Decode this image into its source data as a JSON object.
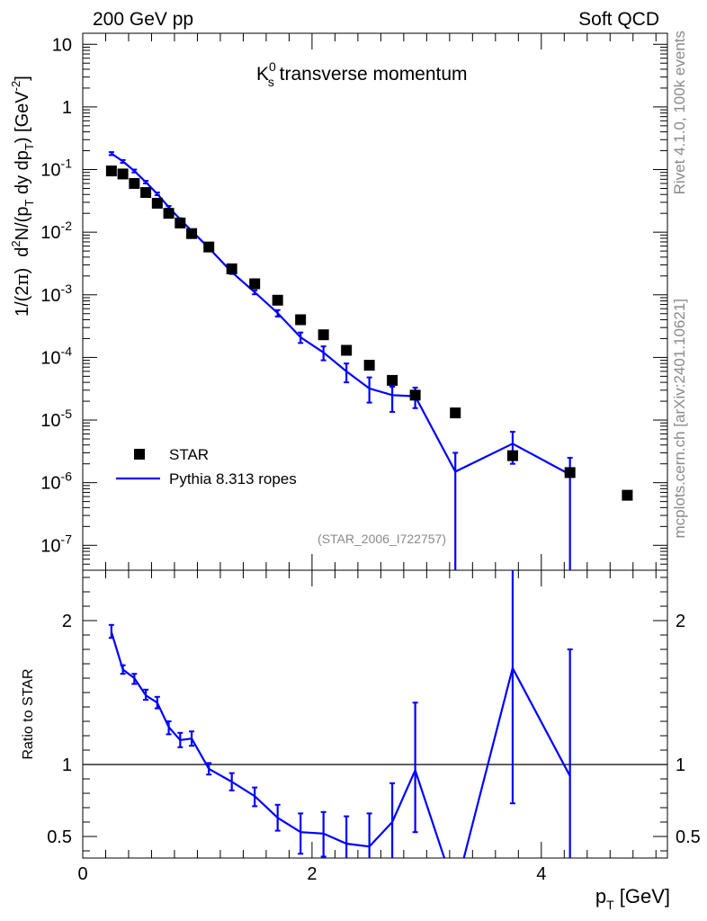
{
  "header": {
    "left": "200 GeV pp",
    "right": "Soft QCD"
  },
  "side": {
    "rivet": "Rivet 4.1.0,  100k events",
    "mcplots": "mcplots.cern.ch [arXiv:2401.10621]"
  },
  "chart_data": [
    {
      "type": "scatter",
      "title": "K_s^0 transverse momentum",
      "title_main": "K",
      "title_sup": "0",
      "title_sub": "s",
      "title_rest": " transverse momentum",
      "xlabel": "p_T [GeV]",
      "xlabel_main": "p",
      "xlabel_sub": "T",
      "xlabel_rest": " [GeV]",
      "ylabel": "1/(2π)  d²N/(p_T dy dp_T) [GeV⁻²]",
      "ylabel_parts": [
        "1/(2",
        "π",
        ")",
        "d",
        "2",
        "N/(p",
        "T",
        " dy dp",
        "T",
        ") [GeV",
        "-2",
        "]"
      ],
      "xlim": [
        0,
        5.1
      ],
      "ylim": [
        4e-08,
        15
      ],
      "yscale": "log",
      "annotation": "(STAR_2006_I722757)",
      "legend_position": "bottom-left",
      "yticks": [
        {
          "value": 10,
          "label": "10"
        },
        {
          "value": 1,
          "label": "1"
        },
        {
          "value": 0.1,
          "mant": "10",
          "exp": "-1"
        },
        {
          "value": 0.01,
          "mant": "10",
          "exp": "-2"
        },
        {
          "value": 0.001,
          "mant": "10",
          "exp": "-3"
        },
        {
          "value": 0.0001,
          "mant": "10",
          "exp": "-4"
        },
        {
          "value": 1e-05,
          "mant": "10",
          "exp": "-5"
        },
        {
          "value": 1e-06,
          "mant": "10",
          "exp": "-6"
        },
        {
          "value": 1e-07,
          "mant": "10",
          "exp": "-7"
        }
      ],
      "series": [
        {
          "name": "STAR",
          "style": "markers",
          "x": [
            0.25,
            0.35,
            0.45,
            0.55,
            0.65,
            0.75,
            0.85,
            0.95,
            1.1,
            1.3,
            1.5,
            1.7,
            1.9,
            2.1,
            2.3,
            2.5,
            2.7,
            2.9,
            3.25,
            3.75,
            4.25,
            4.75
          ],
          "y": [
            0.095,
            0.085,
            0.06,
            0.043,
            0.029,
            0.02,
            0.014,
            0.0095,
            0.0058,
            0.0026,
            0.0015,
            0.00082,
            0.0004,
            0.00023,
            0.00013,
            7.5e-05,
            4.3e-05,
            2.5e-05,
            1.3e-05,
            2.7e-06,
            1.45e-06,
            6.3e-07
          ]
        },
        {
          "name": "Pythia 8.313 ropes",
          "style": "line",
          "color": "#0000ff",
          "x": [
            0.25,
            0.35,
            0.45,
            0.55,
            0.65,
            0.75,
            0.85,
            0.95,
            1.1,
            1.3,
            1.5,
            1.7,
            1.9,
            2.1,
            2.3,
            2.5,
            2.7,
            2.9,
            3.25,
            3.75,
            4.25
          ],
          "y": [
            0.18,
            0.135,
            0.095,
            0.063,
            0.041,
            0.025,
            0.016,
            0.0105,
            0.0056,
            0.0023,
            0.0011,
            0.00051,
            0.00021,
            0.00012,
            6e-05,
            3.2e-05,
            2.5e-05,
            2.4e-05,
            1.5e-06,
            4.2e-06,
            1.35e-06
          ],
          "err_lo": [
            0.17,
            0.128,
            0.09,
            0.06,
            0.039,
            0.0238,
            0.0153,
            0.01,
            0.0053,
            0.00215,
            0.00102,
            0.00045,
            0.00017,
            9e-05,
            4e-05,
            1.9e-05,
            1.35e-05,
            1.55e-05,
            1e-09,
            2e-06,
            1e-09
          ],
          "err_hi": [
            0.19,
            0.142,
            0.1,
            0.066,
            0.043,
            0.0262,
            0.0167,
            0.011,
            0.0059,
            0.00245,
            0.00118,
            0.00057,
            0.00025,
            0.00015,
            8e-05,
            4.8e-05,
            3.4e-05,
            3.3e-05,
            3e-06,
            6.5e-06,
            2.5e-06
          ]
        }
      ]
    },
    {
      "type": "line",
      "title": "",
      "xlabel": "p_T [GeV]",
      "ylabel": "Ratio to STAR",
      "xlim": [
        0,
        5.1
      ],
      "ylim": [
        0.35,
        2.35
      ],
      "xticks": [
        {
          "value": 0,
          "label": "0"
        },
        {
          "value": 2,
          "label": "2"
        },
        {
          "value": 4,
          "label": "4"
        }
      ],
      "yticks": [
        {
          "value": 2,
          "label": "2"
        },
        {
          "value": 1,
          "label": "1"
        },
        {
          "value": 0.5,
          "label": "0.5"
        }
      ],
      "reference_line": 1,
      "series": [
        {
          "name": "Pythia 8.313 ropes / STAR",
          "color": "#0000ff",
          "x": [
            0.25,
            0.35,
            0.45,
            0.55,
            0.65,
            0.75,
            0.85,
            0.95,
            1.1,
            1.3,
            1.5,
            1.7,
            1.9,
            2.1,
            2.3,
            2.5,
            2.7,
            2.9,
            3.25,
            3.75,
            4.25
          ],
          "y": [
            1.92,
            1.66,
            1.6,
            1.48,
            1.43,
            1.26,
            1.17,
            1.18,
            0.97,
            0.88,
            0.78,
            0.63,
            0.53,
            0.52,
            0.45,
            0.43,
            0.6,
            0.96,
            0.12,
            1.67,
            0.92
          ],
          "err_lo": [
            1.88,
            1.63,
            1.56,
            1.45,
            1.39,
            1.21,
            1.12,
            1.13,
            0.93,
            0.82,
            0.71,
            0.54,
            0.38,
            0.36,
            0.3,
            0.29,
            0.33,
            0.53,
            0.0,
            0.73,
            0.0
          ],
          "err_hi": [
            1.97,
            1.69,
            1.63,
            1.52,
            1.47,
            1.3,
            1.22,
            1.23,
            1.01,
            0.94,
            0.84,
            0.72,
            0.66,
            0.67,
            0.64,
            0.66,
            0.87,
            1.43,
            0.24,
            2.4,
            1.8
          ]
        }
      ]
    }
  ]
}
